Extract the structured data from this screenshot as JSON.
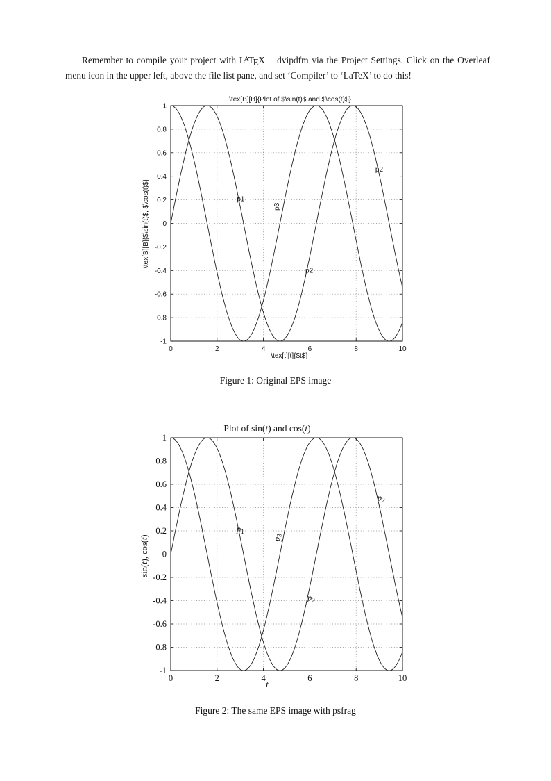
{
  "page": {
    "background": "#ffffff",
    "text_color": "#1a1a1a"
  },
  "intro": {
    "before": "Remember to compile your project with ",
    "latex": {
      "l": "L",
      "a": "A",
      "t": "T",
      "e": "E",
      "x": "X"
    },
    "after": " + dvipdfm via the Project Settings. Click on the Overleaf menu icon in the upper left, above the file list pane, and set ‘Compiler’ to ‘LaTeX’ to do this!"
  },
  "figure1": {
    "title": "\\tex[B][B]{Plot of $\\sin(t)$ and $\\cos(t)$}",
    "ylabel": "\\tex[B][B]{$\\sin(t)$, $\\cos(t)$}",
    "xlabel": "\\tex[t][t]{$t$}",
    "yticks": [
      "1",
      "0.8",
      "0.6",
      "0.4",
      "0.2",
      "0",
      "-0.2",
      "-0.4",
      "-0.6",
      "-0.8",
      "-1"
    ],
    "xticks": [
      "0",
      "2",
      "4",
      "6",
      "8",
      "10"
    ],
    "annotations": [
      {
        "text": "p1",
        "t": 2.85,
        "v": 0.19,
        "rot": 0
      },
      {
        "text": "p3",
        "t": 4.67,
        "v": 0.11,
        "rot": -90
      },
      {
        "text": "p2",
        "t": 8.83,
        "v": 0.44,
        "rot": 0
      },
      {
        "text": "p2",
        "t": 5.81,
        "v": -0.42,
        "rot": 0
      }
    ],
    "caption": "Figure 1: Original EPS image"
  },
  "figure2": {
    "title_parts": [
      {
        "text": "Plot of sin("
      },
      {
        "text": "t",
        "italic": true
      },
      {
        "text": ") and cos("
      },
      {
        "text": "t",
        "italic": true
      },
      {
        "text": ")"
      }
    ],
    "ylabel_parts": [
      {
        "text": "sin("
      },
      {
        "text": "t",
        "italic": true
      },
      {
        "text": "), cos("
      },
      {
        "text": "t",
        "italic": true
      },
      {
        "text": ")"
      }
    ],
    "xlabel_parts": [
      {
        "text": "t",
        "italic": true
      }
    ],
    "yticks": [
      "1",
      "0.8",
      "0.6",
      "0.4",
      "0.2",
      "0",
      "-0.2",
      "-0.4",
      "-0.6",
      "-0.8",
      "-1"
    ],
    "xticks": [
      "0",
      "2",
      "4",
      "6",
      "8",
      "10"
    ],
    "annotations": [
      {
        "parts": [
          {
            "text": "p",
            "italic": true
          },
          {
            "text": "1",
            "sub": true
          }
        ],
        "t": 2.84,
        "v": 0.19,
        "rot": 0
      },
      {
        "parts": [
          {
            "text": "p",
            "italic": true
          },
          {
            "text": "3",
            "sub": true
          }
        ],
        "t": 4.7,
        "v": 0.11,
        "rot": -90
      },
      {
        "parts": [
          {
            "text": "p",
            "italic": true
          },
          {
            "text": "2",
            "sub": true
          }
        ],
        "t": 8.92,
        "v": 0.46,
        "rot": 0
      },
      {
        "parts": [
          {
            "text": "p",
            "italic": true
          },
          {
            "text": "2",
            "sub": true
          }
        ],
        "t": 5.9,
        "v": -0.4,
        "rot": 0
      }
    ],
    "caption": "Figure 2: The same EPS image with psfrag"
  },
  "chart_data": [
    {
      "type": "line",
      "title": "\\tex[B][B]{Plot of $\\sin(t)$ and $\\cos(t)$}",
      "xlabel": "\\tex[t][t]{$t$}",
      "ylabel": "\\tex[B][B]{$\\sin(t)$, $\\cos(t)$}",
      "x_range": [
        0,
        10
      ],
      "ylim": [
        -1,
        1
      ],
      "xticks": [
        0,
        2,
        4,
        6,
        8,
        10
      ],
      "yticks": [
        -1,
        -0.8,
        -0.6,
        -0.4,
        -0.2,
        0,
        0.2,
        0.4,
        0.6,
        0.8,
        1
      ],
      "grid": "dotted",
      "legend": "none",
      "series": [
        {
          "name": "sin(t)",
          "fn": "sin"
        },
        {
          "name": "cos(t)",
          "fn": "cos"
        }
      ],
      "annotations": [
        "p1",
        "p3",
        "p2",
        "p2"
      ]
    },
    {
      "type": "line",
      "title": "Plot of sin(t) and cos(t)",
      "xlabel": "t",
      "ylabel": "sin(t), cos(t)",
      "x_range": [
        0,
        10
      ],
      "ylim": [
        -1,
        1
      ],
      "xticks": [
        0,
        2,
        4,
        6,
        8,
        10
      ],
      "yticks": [
        -1,
        -0.8,
        -0.6,
        -0.4,
        -0.2,
        0,
        0.2,
        0.4,
        0.6,
        0.8,
        1
      ],
      "grid": "dotted",
      "legend": "none",
      "series": [
        {
          "name": "sin(t)",
          "fn": "sin"
        },
        {
          "name": "cos(t)",
          "fn": "cos"
        }
      ],
      "annotations": [
        "p1",
        "p3",
        "p2",
        "p2"
      ]
    }
  ]
}
